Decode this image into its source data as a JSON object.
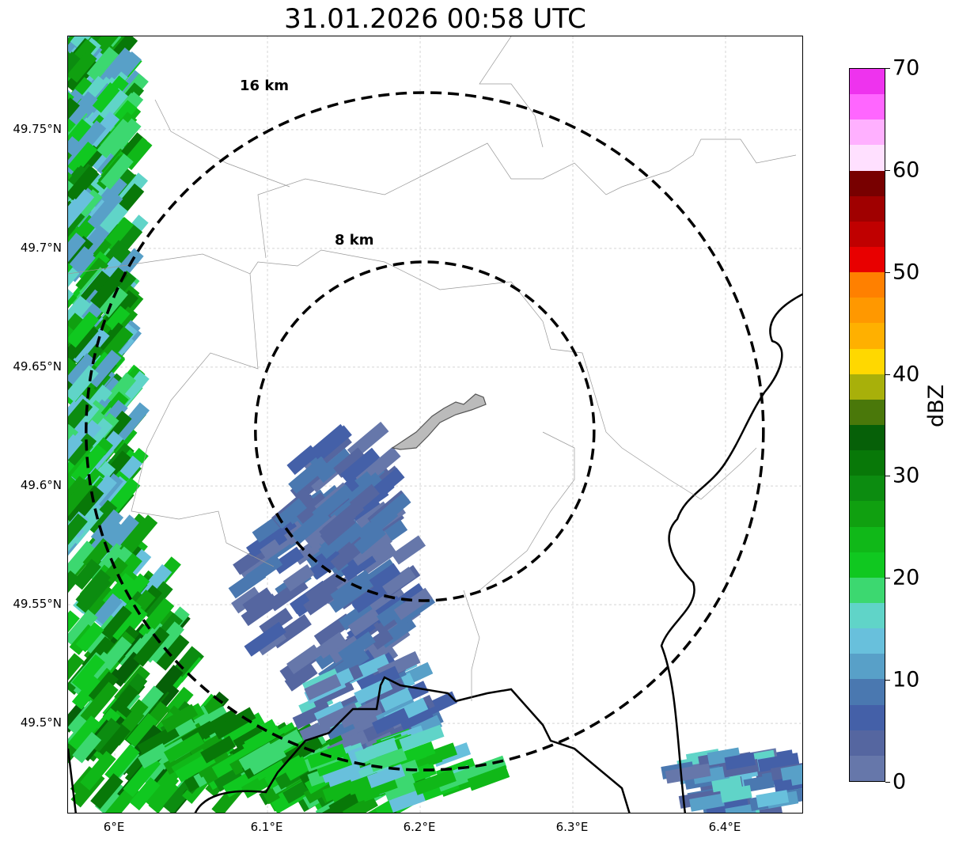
{
  "title": "31.01.2026 00:58 UTC",
  "map": {
    "ring_labels": {
      "outer": "16 km",
      "inner": "8 km"
    },
    "lat_ticks": [
      {
        "value": 49.75,
        "label": "49.75°N"
      },
      {
        "value": 49.7,
        "label": "49.7°N"
      },
      {
        "value": 49.65,
        "label": "49.65°N"
      },
      {
        "value": 49.6,
        "label": "49.6°N"
      },
      {
        "value": 49.55,
        "label": "49.55°N"
      },
      {
        "value": 49.5,
        "label": "49.5°N"
      }
    ],
    "lon_ticks": [
      {
        "value": 6.0,
        "label": "6°E"
      },
      {
        "value": 6.1,
        "label": "6.1°E"
      },
      {
        "value": 6.2,
        "label": "6.2°E"
      },
      {
        "value": 6.3,
        "label": "6.3°E"
      },
      {
        "value": 6.4,
        "label": "6.4°E"
      }
    ],
    "extent": {
      "lon": [
        5.9694,
        6.4513
      ],
      "lat": [
        49.4617,
        49.7893
      ]
    },
    "center": {
      "lon": 6.203,
      "lat": 49.623
    }
  },
  "colorbar": {
    "label": "dBZ",
    "ticks": [
      {
        "value": 0,
        "label": "0"
      },
      {
        "value": 10,
        "label": "10"
      },
      {
        "value": 20,
        "label": "20"
      },
      {
        "value": 30,
        "label": "30"
      },
      {
        "value": 40,
        "label": "40"
      },
      {
        "value": 50,
        "label": "50"
      },
      {
        "value": 60,
        "label": "60"
      },
      {
        "value": 70,
        "label": "70"
      }
    ],
    "range": [
      0,
      70
    ],
    "colors": [
      "#6677aa",
      "#5566a0",
      "#4460a8",
      "#4a78b0",
      "#58a0c8",
      "#68c0dc",
      "#60d4c8",
      "#3cd870",
      "#10c820",
      "#10b818",
      "#10a010",
      "#0c8c10",
      "#087808",
      "#066008",
      "#4a780a",
      "#a8b00a",
      "#ffd800",
      "#ffb000",
      "#ff9800",
      "#ff8000",
      "#e80000",
      "#c00000",
      "#a00000",
      "#780000",
      "#ffe0ff",
      "#ffb0ff",
      "#ff66ff",
      "#ee33ee"
    ]
  }
}
